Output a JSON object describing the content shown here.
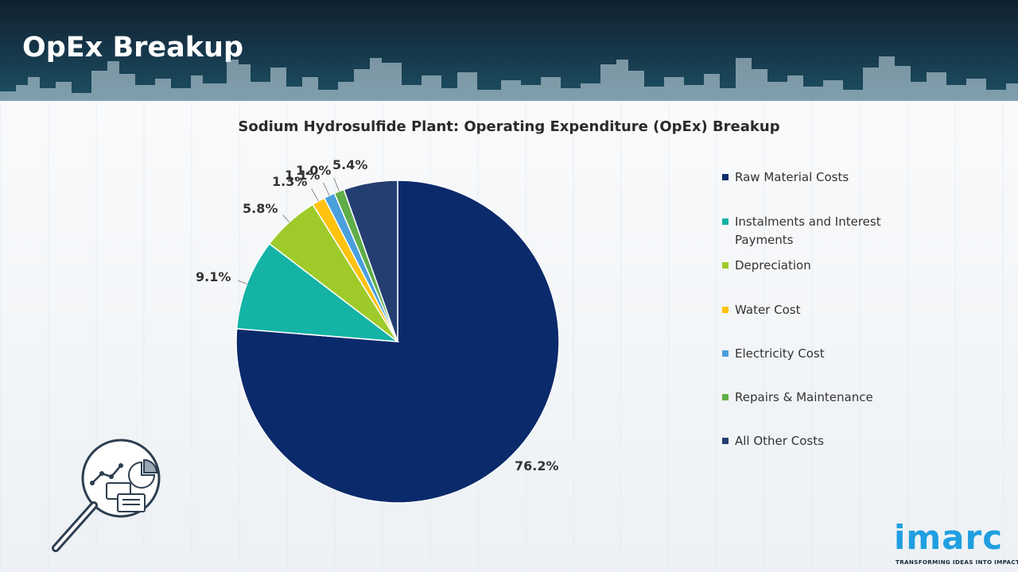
{
  "header": {
    "title": "OpEx Breakup"
  },
  "chart_data": {
    "type": "pie",
    "title": "Sodium Hydrosulfide Plant: Operating Expenditure (OpEx) Breakup",
    "categories": [
      "Raw Material Costs",
      "Instalments and Interest Payments",
      "Depreciation",
      "Water Cost",
      "Electricity Cost",
      "Repairs & Maintenance",
      "All Other Costs"
    ],
    "values": [
      76.2,
      9.1,
      5.8,
      1.3,
      1.1,
      1.0,
      5.4
    ],
    "labels": [
      "76.2%",
      "9.1%",
      "5.8%",
      "1.3%",
      "1.1%",
      "1.0%",
      "5.4%"
    ],
    "colors": [
      "#0b2a6b",
      "#14b3a5",
      "#9ecb2a",
      "#ffc20e",
      "#4a9fdc",
      "#5fae48",
      "#243e72"
    ],
    "legend_position": "right"
  },
  "logo": {
    "name": "imarc",
    "tagline": "TRANSFORMING IDEAS INTO IMPACT"
  },
  "icons": {
    "magnifier": "magnifier-chart-icon"
  }
}
